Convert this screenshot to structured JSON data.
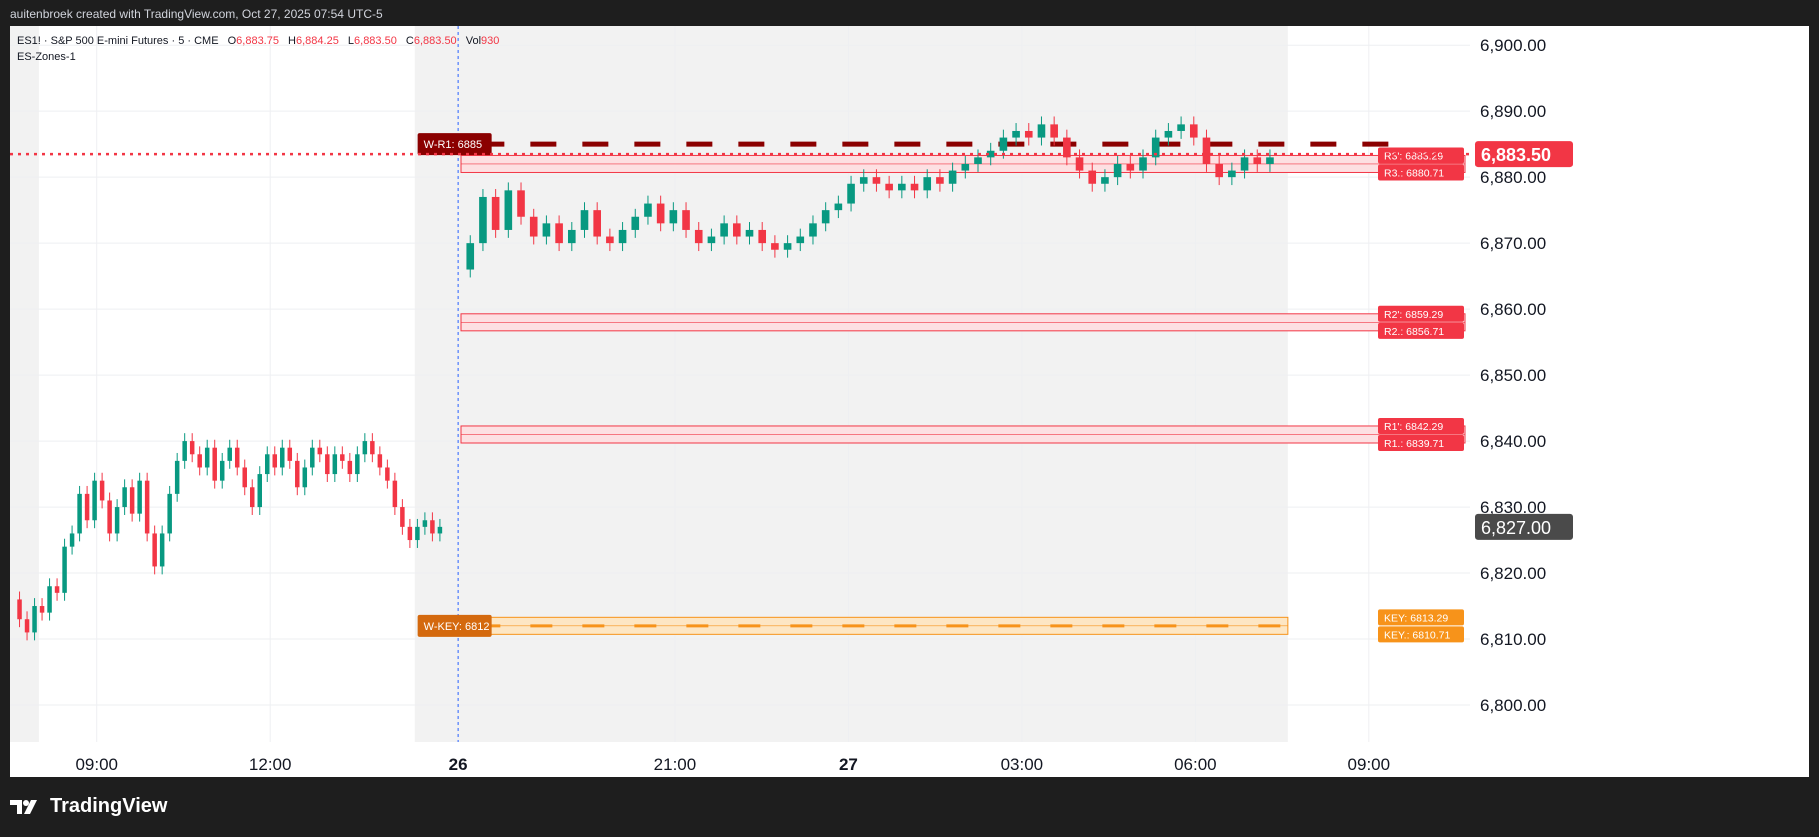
{
  "header": {
    "attribution": "auitenbroek created with TradingView.com, Oct 27, 2025 07:54 UTC-5"
  },
  "legend": {
    "symbol": "ES1! · S&P 500 E-mini Futures · 5 · CME",
    "open_label": "O",
    "open": "6,883.75",
    "high_label": "H",
    "high": "6,884.25",
    "low_label": "L",
    "low": "6,883.50",
    "close_label": "C",
    "close": "6,883.50",
    "vol_label": "Vol",
    "vol": "930",
    "indicator": "ES-Zones-1"
  },
  "brand": {
    "name": "TradingView"
  },
  "colors": {
    "up": "#089981",
    "down": "#f23645",
    "resistance": "#f23645",
    "resistance_fill": "#fde0e2",
    "weekly_r1": "#8b0000",
    "key": "#f7931a",
    "key_fill": "#fde6c4",
    "session_shade": "#f2f2f2",
    "current_price_line": "#f23645"
  },
  "chart_data": {
    "type": "candlestick",
    "symbol": "ES1!",
    "interval": "5",
    "ylim": [
      6795,
      6902
    ],
    "y_ticks": [
      "6,800.00",
      "6,810.00",
      "6,820.00",
      "6,830.00",
      "6,840.00",
      "6,850.00",
      "6,860.00",
      "6,870.00",
      "6,880.00",
      "6,890.00",
      "6,900.00"
    ],
    "y_tick_values": [
      6800,
      6810,
      6820,
      6830,
      6840,
      6850,
      6860,
      6870,
      6880,
      6890,
      6900
    ],
    "x_ticks": [
      {
        "label": "09:00",
        "t": 8.0,
        "bold": false
      },
      {
        "label": "12:00",
        "t": 11.0,
        "bold": false
      },
      {
        "label": "26",
        "t": 14.25,
        "bold": true
      },
      {
        "label": "21:00",
        "t": 18.0,
        "bold": false
      },
      {
        "label": "27",
        "t": 21.0,
        "bold": true
      },
      {
        "label": "03:00",
        "t": 24.0,
        "bold": false
      },
      {
        "label": "06:00",
        "t": 27.0,
        "bold": false
      },
      {
        "label": "09:00",
        "t": 30.0,
        "bold": false
      }
    ],
    "session1_candles": [
      [
        6816,
        6813
      ],
      [
        6813,
        6811
      ],
      [
        6811,
        6815
      ],
      [
        6815,
        6814
      ],
      [
        6814,
        6818
      ],
      [
        6818,
        6817
      ],
      [
        6817,
        6824
      ],
      [
        6824,
        6826
      ],
      [
        6826,
        6832
      ],
      [
        6832,
        6828
      ],
      [
        6828,
        6834
      ],
      [
        6834,
        6831
      ],
      [
        6831,
        6826
      ],
      [
        6826,
        6830
      ],
      [
        6830,
        6833
      ],
      [
        6833,
        6829
      ],
      [
        6829,
        6834
      ],
      [
        6834,
        6826
      ],
      [
        6826,
        6821
      ],
      [
        6821,
        6826
      ],
      [
        6826,
        6832
      ],
      [
        6832,
        6837
      ],
      [
        6837,
        6840
      ],
      [
        6840,
        6838
      ],
      [
        6838,
        6836
      ],
      [
        6836,
        6839
      ],
      [
        6839,
        6834
      ],
      [
        6834,
        6837
      ],
      [
        6837,
        6839
      ],
      [
        6839,
        6836
      ],
      [
        6836,
        6833
      ],
      [
        6833,
        6830
      ],
      [
        6830,
        6835
      ],
      [
        6835,
        6838
      ],
      [
        6838,
        6836
      ],
      [
        6836,
        6839
      ],
      [
        6839,
        6837
      ],
      [
        6837,
        6833
      ],
      [
        6833,
        6836
      ],
      [
        6836,
        6839
      ],
      [
        6839,
        6838
      ],
      [
        6838,
        6835
      ],
      [
        6835,
        6838
      ],
      [
        6838,
        6837
      ],
      [
        6837,
        6835
      ],
      [
        6835,
        6838
      ],
      [
        6838,
        6840
      ],
      [
        6840,
        6838
      ],
      [
        6838,
        6836
      ],
      [
        6836,
        6834
      ],
      [
        6834,
        6830
      ],
      [
        6830,
        6827
      ],
      [
        6827,
        6825
      ],
      [
        6825,
        6827
      ],
      [
        6827,
        6828
      ],
      [
        6828,
        6826
      ],
      [
        6826,
        6827
      ]
    ],
    "session1_start": 6.6,
    "session1_end": 14.0,
    "session2_candles": [
      [
        6866,
        6870
      ],
      [
        6870,
        6877
      ],
      [
        6877,
        6872
      ],
      [
        6872,
        6878
      ],
      [
        6878,
        6874
      ],
      [
        6874,
        6871
      ],
      [
        6871,
        6873
      ],
      [
        6873,
        6870
      ],
      [
        6870,
        6872
      ],
      [
        6872,
        6875
      ],
      [
        6875,
        6871
      ],
      [
        6871,
        6870
      ],
      [
        6870,
        6872
      ],
      [
        6872,
        6874
      ],
      [
        6874,
        6876
      ],
      [
        6876,
        6873
      ],
      [
        6873,
        6875
      ],
      [
        6875,
        6872
      ],
      [
        6872,
        6870
      ],
      [
        6870,
        6871
      ],
      [
        6871,
        6873
      ],
      [
        6873,
        6871
      ],
      [
        6871,
        6872
      ],
      [
        6872,
        6870
      ],
      [
        6870,
        6869
      ],
      [
        6869,
        6870
      ],
      [
        6870,
        6871
      ],
      [
        6871,
        6873
      ],
      [
        6873,
        6875
      ],
      [
        6875,
        6876
      ],
      [
        6876,
        6879
      ],
      [
        6879,
        6880
      ],
      [
        6880,
        6879
      ],
      [
        6879,
        6878
      ],
      [
        6878,
        6879
      ],
      [
        6879,
        6878
      ],
      [
        6878,
        6880
      ],
      [
        6880,
        6879
      ],
      [
        6879,
        6881
      ],
      [
        6881,
        6882
      ],
      [
        6882,
        6883
      ],
      [
        6883,
        6884
      ],
      [
        6884,
        6886
      ],
      [
        6886,
        6887
      ],
      [
        6887,
        6886
      ],
      [
        6886,
        6888
      ],
      [
        6888,
        6886
      ],
      [
        6886,
        6883
      ],
      [
        6883,
        6881
      ],
      [
        6881,
        6879
      ],
      [
        6879,
        6880
      ],
      [
        6880,
        6882
      ],
      [
        6882,
        6881
      ],
      [
        6881,
        6883
      ],
      [
        6883,
        6886
      ],
      [
        6886,
        6887
      ],
      [
        6887,
        6888
      ],
      [
        6888,
        6886
      ],
      [
        6886,
        6882
      ],
      [
        6882,
        6880
      ],
      [
        6880,
        6881
      ],
      [
        6881,
        6883
      ],
      [
        6883,
        6882
      ],
      [
        6882,
        6883
      ]
    ],
    "session2_start": 14.35,
    "session2_end": 28.4,
    "zones": [
      {
        "id": "R3",
        "upper_label": "R3': 6883.29",
        "lower_label": "R3.: 6880.71",
        "upper": 6883.29,
        "lower": 6880.71,
        "kind": "resistance"
      },
      {
        "id": "R2",
        "upper_label": "R2': 6859.29",
        "lower_label": "R2.: 6856.71",
        "upper": 6859.29,
        "lower": 6856.71,
        "kind": "resistance"
      },
      {
        "id": "R1",
        "upper_label": "R1': 6842.29",
        "lower_label": "R1.: 6839.71",
        "upper": 6842.29,
        "lower": 6839.71,
        "kind": "resistance"
      },
      {
        "id": "KEY",
        "upper_label": "KEY: 6813.29",
        "lower_label": "KEY.: 6810.71",
        "upper": 6813.29,
        "lower": 6810.71,
        "kind": "key"
      }
    ],
    "weekly_levels": [
      {
        "label": "W-R1: 6885",
        "value": 6885,
        "kind": "weekly_r1"
      },
      {
        "label": "W-KEY: 6812",
        "value": 6812,
        "kind": "key"
      }
    ],
    "current_price": {
      "label": "6,883.50",
      "value": 6883.5
    },
    "prev_close": {
      "label": "6,827.00",
      "value": 6827.0
    }
  }
}
